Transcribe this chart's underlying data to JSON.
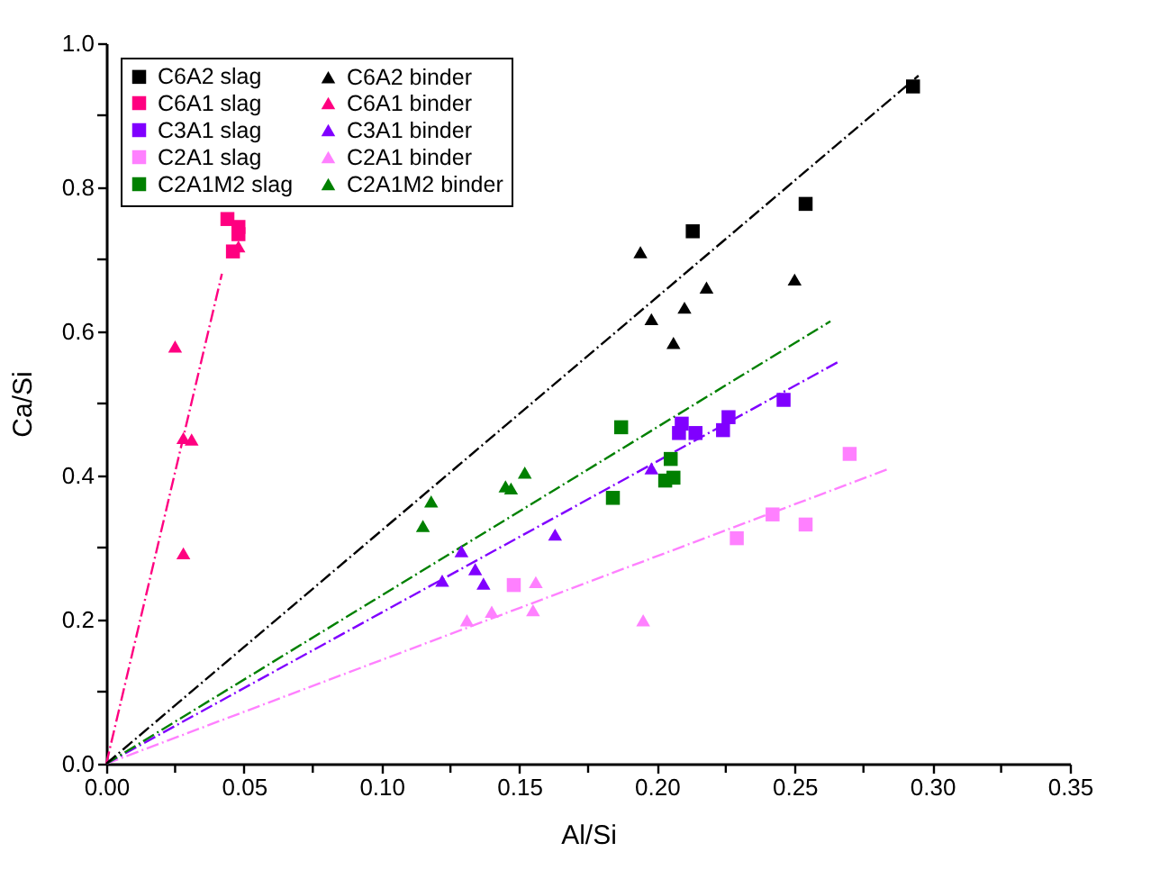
{
  "chart_data": {
    "type": "scatter",
    "xlabel": "Al/Si",
    "ylabel": "Ca/Si",
    "xlim": [
      0,
      0.35
    ],
    "ylim": [
      0,
      1.0
    ],
    "xticks": [
      {
        "value": 0,
        "label": "0.00"
      },
      {
        "value": 0.025,
        "label": null
      },
      0.05,
      {
        "value": 0.075,
        "label": null
      },
      {
        "value": 0.1,
        "label": "0.10"
      },
      {
        "value": 0.125,
        "label": null
      },
      0.15,
      {
        "value": 0.175,
        "label": null
      },
      {
        "value": 0.2,
        "label": "0.20"
      },
      {
        "value": 0.225,
        "label": null
      },
      0.25,
      {
        "value": 0.275,
        "label": null
      },
      {
        "value": 0.3,
        "label": "0.30"
      },
      {
        "value": 0.325,
        "label": null
      },
      0.35
    ],
    "yticks": [
      {
        "value": 0,
        "label": "0.0"
      },
      {
        "value": 0.1,
        "label": null
      },
      0.2,
      {
        "value": 0.3,
        "label": null
      },
      0.4,
      {
        "value": 0.5,
        "label": null
      },
      0.6,
      {
        "value": 0.7,
        "label": null
      },
      0.8,
      {
        "value": 0.9,
        "label": null
      },
      {
        "value": 1.0,
        "label": "1.0"
      }
    ],
    "legend": "top left",
    "grid": false,
    "series": [
      {
        "name": "C6A2 slag",
        "type": "scatter",
        "marker": "square",
        "color": "#000000",
        "x": [
          0.293,
          0.254,
          0.213
        ],
        "values": [
          0.94,
          0.777,
          0.739
        ]
      },
      {
        "name": "C6A2 binder",
        "type": "scatter",
        "marker": "triangle",
        "color": "#000000",
        "x": [
          0.194,
          0.218,
          0.21,
          0.198,
          0.206,
          0.25
        ],
        "values": [
          0.71,
          0.661,
          0.633,
          0.617,
          0.584,
          0.672
        ]
      },
      {
        "name": "C6A1 slag",
        "type": "scatter",
        "marker": "square",
        "color": "#ff0080",
        "x": [
          0.044,
          0.048,
          0.048,
          0.046
        ],
        "values": [
          0.756,
          0.745,
          0.735,
          0.711
        ]
      },
      {
        "name": "C6A1 binder",
        "type": "scatter",
        "marker": "triangle",
        "color": "#ff0080",
        "x": [
          0.048,
          0.025,
          0.028,
          0.031,
          0.028
        ],
        "values": [
          0.718,
          0.579,
          0.452,
          0.45,
          0.292
        ]
      },
      {
        "name": "C3A1 slag",
        "type": "scatter",
        "marker": "square",
        "color": "#8000ff",
        "x": [
          0.208,
          0.209,
          0.214,
          0.224,
          0.226,
          0.246
        ],
        "values": [
          0.459,
          0.472,
          0.459,
          0.463,
          0.481,
          0.505
        ]
      },
      {
        "name": "C3A1 binder",
        "type": "scatter",
        "marker": "triangle",
        "color": "#8000ff",
        "x": [
          0.198,
          0.163,
          0.129,
          0.134,
          0.137,
          0.122
        ],
        "values": [
          0.41,
          0.318,
          0.295,
          0.27,
          0.25,
          0.254
        ]
      },
      {
        "name": "C2A1 slag",
        "type": "scatter",
        "marker": "square",
        "color": "#ff80ff",
        "x": [
          0.148,
          0.229,
          0.242,
          0.254,
          0.27
        ],
        "values": [
          0.248,
          0.313,
          0.346,
          0.332,
          0.43
        ]
      },
      {
        "name": "C2A1 binder",
        "type": "scatter",
        "marker": "triangle",
        "color": "#ff80ff",
        "x": [
          0.131,
          0.14,
          0.155,
          0.156,
          0.195
        ],
        "values": [
          0.199,
          0.211,
          0.213,
          0.252,
          0.199
        ]
      },
      {
        "name": "C2A1M2 slag",
        "type": "scatter",
        "marker": "square",
        "color": "#008000",
        "x": [
          0.187,
          0.184,
          0.205,
          0.203,
          0.206
        ],
        "values": [
          0.467,
          0.369,
          0.423,
          0.393,
          0.397
        ]
      },
      {
        "name": "C2A1M2 binder",
        "type": "scatter",
        "marker": "triangle",
        "color": "#008000",
        "x": [
          0.115,
          0.118,
          0.145,
          0.147,
          0.152
        ],
        "values": [
          0.33,
          0.364,
          0.385,
          0.382,
          0.404
        ]
      },
      {
        "type": "line",
        "line_style": "dashed",
        "color": "#000000",
        "x": [
          0,
          0.295
        ],
        "values": [
          0,
          0.955
        ]
      },
      {
        "type": "line",
        "line_style": "dashed",
        "color": "#ff0080",
        "x": [
          0,
          0.042
        ],
        "values": [
          0,
          0.68
        ]
      },
      {
        "type": "line",
        "line_style": "dashed",
        "color": "#008000",
        "x": [
          0,
          0.263
        ],
        "values": [
          0,
          0.614
        ]
      },
      {
        "type": "line",
        "line_style": "dashed",
        "color": "#8000ff",
        "x": [
          0,
          0.266
        ],
        "values": [
          0,
          0.558
        ]
      },
      {
        "type": "line",
        "line_style": "dashed",
        "color": "#ff80ff",
        "x": [
          0,
          0.284
        ],
        "values": [
          0,
          0.409
        ]
      }
    ]
  }
}
